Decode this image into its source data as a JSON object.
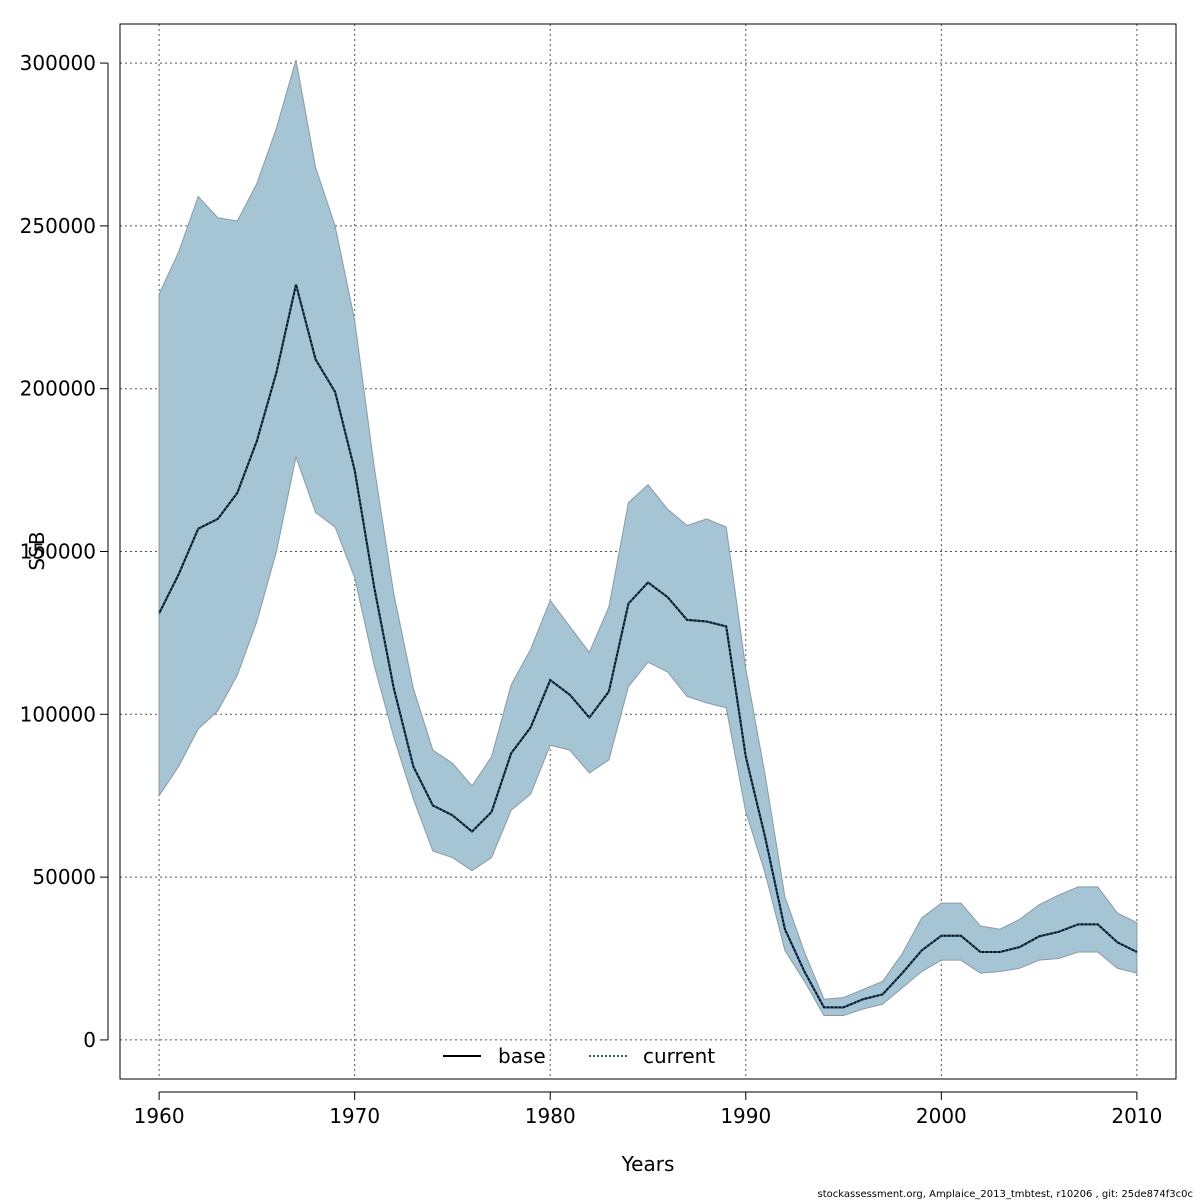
{
  "chart_data": {
    "type": "area",
    "title": "",
    "xlabel": "Years",
    "ylabel": "SSB",
    "xlim": [
      1958,
      2012
    ],
    "ylim": [
      -12000,
      312000
    ],
    "grid": true,
    "legend_position": "bottom-center",
    "x_ticks": [
      1960,
      1970,
      1980,
      1990,
      2000,
      2010
    ],
    "x_tick_labels": [
      "1960",
      "1970",
      "1980",
      "1990",
      "2000",
      "2010"
    ],
    "y_ticks": [
      0,
      50000,
      100000,
      150000,
      200000,
      250000,
      300000
    ],
    "y_tick_labels": [
      "0",
      "50000",
      "100000",
      "150000",
      "200000",
      "250000",
      "300000"
    ],
    "x": [
      1960,
      1961,
      1962,
      1963,
      1964,
      1965,
      1966,
      1967,
      1968,
      1969,
      1970,
      1971,
      1972,
      1973,
      1974,
      1975,
      1976,
      1977,
      1978,
      1979,
      1980,
      1981,
      1982,
      1983,
      1984,
      1985,
      1986,
      1987,
      1988,
      1989,
      1990,
      1991,
      1992,
      1993,
      1994,
      1995,
      1996,
      1997,
      1998,
      1999,
      2000,
      2001,
      2002,
      2003,
      2004,
      2005,
      2006,
      2007,
      2008,
      2009,
      2010
    ],
    "series": [
      {
        "name": "base",
        "style": "solid",
        "color": "#000000",
        "values": [
          131000,
          143000,
          157000,
          160000,
          168000,
          184000,
          205000,
          232000,
          209000,
          199000,
          175000,
          139000,
          108000,
          84000,
          72000,
          69000,
          64000,
          70000,
          88000,
          96000,
          110500,
          106000,
          99000,
          107000,
          134000,
          140500,
          136000,
          129000,
          128500,
          127000,
          87000,
          62000,
          34000,
          21000,
          10000,
          10000,
          12500,
          14000,
          20500,
          27500,
          32000,
          32000,
          27000,
          27000,
          28500,
          31800,
          33200,
          35500,
          35500,
          30000,
          27000
        ]
      },
      {
        "name": "current",
        "style": "dotted",
        "color": "#1f5a8a",
        "values": [
          131000,
          143000,
          157000,
          160000,
          168000,
          184000,
          205000,
          232000,
          209000,
          199000,
          175000,
          139000,
          108000,
          84000,
          72000,
          69000,
          64000,
          70000,
          88000,
          96000,
          110500,
          106000,
          99000,
          107000,
          134000,
          140500,
          136000,
          129000,
          128500,
          127000,
          87000,
          62000,
          34000,
          21000,
          10000,
          10000,
          12500,
          14000,
          20500,
          27500,
          32000,
          32000,
          27000,
          27000,
          28500,
          31800,
          33200,
          35500,
          35500,
          30000,
          27000
        ]
      }
    ],
    "band": {
      "name": "confidence interval",
      "color": "#a5c4d4",
      "upper": [
        229000,
        242000,
        259000,
        252500,
        251500,
        263000,
        280000,
        301000,
        268000,
        250000,
        221000,
        176000,
        137000,
        108000,
        89000,
        85000,
        78000,
        87000,
        109000,
        120000,
        135000,
        127000,
        119000,
        133000,
        165000,
        170500,
        163000,
        158000,
        160000,
        157500,
        114000,
        81000,
        44000,
        27000,
        12500,
        13000,
        15500,
        18000,
        26500,
        37500,
        42000,
        42000,
        35000,
        34000,
        37000,
        41500,
        44500,
        47000,
        47000,
        39000,
        36000
      ],
      "lower": [
        75000,
        84000,
        95500,
        101000,
        112000,
        128500,
        150000,
        179000,
        162000,
        157500,
        142000,
        115000,
        93000,
        74000,
        58000,
        56000,
        52000,
        56000,
        70500,
        75500,
        90500,
        89000,
        82000,
        86000,
        108500,
        116000,
        113000,
        105500,
        103500,
        102000,
        70000,
        51000,
        27500,
        18000,
        7500,
        7500,
        9500,
        11000,
        16000,
        21000,
        24500,
        24500,
        20500,
        21000,
        22000,
        24500,
        25000,
        27000,
        27000,
        22000,
        20500
      ]
    }
  },
  "legend": {
    "items": [
      {
        "label": "base",
        "style": "solid",
        "color": "#000000"
      },
      {
        "label": "current",
        "style": "dotted",
        "color": "#1f5a8a"
      }
    ]
  },
  "footer": {
    "text": "stockassessment.org, Amplaice_2013_tmbtest, r10206 , git: 25de874f3c0c"
  }
}
